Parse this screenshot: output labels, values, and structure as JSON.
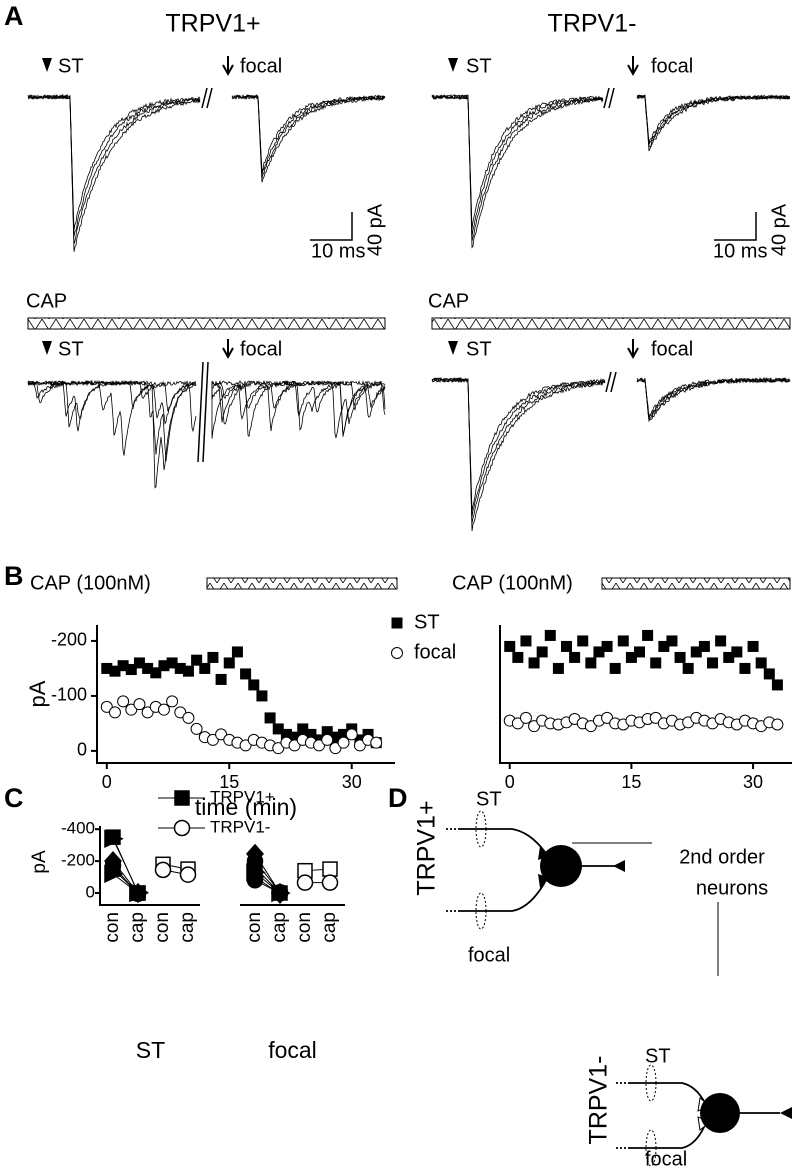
{
  "panel_labels": [
    "A",
    "B",
    "C",
    "D"
  ],
  "panel_a": {
    "columns": [
      "TRPV1+",
      "TRPV1-"
    ],
    "stimuli": [
      "ST",
      "focal"
    ],
    "scale_time": "10 ms",
    "scale_current": "40 pA",
    "drug": "CAP"
  },
  "chart_data": [
    {
      "type": "scatter",
      "annotation": "CAP (100nM)",
      "xlabel": "time (min)",
      "ylabel": "pA",
      "x": [
        0,
        1,
        2,
        3,
        4,
        5,
        6,
        7,
        8,
        9,
        10,
        11,
        12,
        13,
        14,
        15,
        16,
        17,
        18,
        19,
        20,
        21,
        22,
        23,
        24,
        25,
        26,
        27,
        28,
        29,
        30,
        31,
        32,
        33
      ],
      "xlim": [
        -1.2,
        35.3
      ],
      "xticks": [
        0,
        15,
        30
      ],
      "ylim": [
        22,
        -229
      ],
      "yticks": [
        0,
        -100,
        -200
      ],
      "legend": "upper right",
      "series": [
        {
          "name": "ST",
          "color": "#000000",
          "marker": "square",
          "values": [
            -150,
            -145,
            -155,
            -148,
            -160,
            -150,
            -142,
            -155,
            -160,
            -150,
            -145,
            -165,
            -150,
            -170,
            -130,
            -160,
            -180,
            -140,
            -120,
            -100,
            -60,
            -40,
            -30,
            -25,
            -40,
            -30,
            -20,
            -35,
            -25,
            -30,
            -40,
            -20,
            -30,
            -15
          ]
        },
        {
          "name": "focal",
          "color": "#ffffff",
          "marker": "circle",
          "values": [
            -80,
            -70,
            -90,
            -75,
            -85,
            -70,
            -80,
            -75,
            -90,
            -70,
            -60,
            -40,
            -25,
            -20,
            -30,
            -20,
            -15,
            -10,
            -20,
            -15,
            -10,
            -5,
            -15,
            -10,
            -20,
            -15,
            -10,
            -20,
            -5,
            -15,
            -30,
            -10,
            -20,
            -15
          ]
        }
      ]
    },
    {
      "type": "scatter",
      "annotation": "CAP (100nM)",
      "x": [
        0,
        1,
        2,
        3,
        4,
        5,
        6,
        7,
        8,
        9,
        10,
        11,
        12,
        13,
        14,
        15,
        16,
        17,
        18,
        19,
        20,
        21,
        22,
        23,
        24,
        25,
        26,
        27,
        28,
        29,
        30,
        31,
        32,
        33
      ],
      "xlim": [
        -1.2,
        34.8
      ],
      "xticks": [
        0,
        15,
        30
      ],
      "ylim": [
        22,
        -229
      ],
      "series": [
        {
          "color": "#000000",
          "marker": "square",
          "values": [
            -190,
            -170,
            -200,
            -160,
            -180,
            -210,
            -150,
            -190,
            -170,
            -200,
            -160,
            -180,
            -190,
            -150,
            -200,
            -170,
            -180,
            -210,
            -160,
            -190,
            -200,
            -170,
            -150,
            -180,
            -190,
            -160,
            -200,
            -170,
            -180,
            -150,
            -190,
            -160,
            -140,
            -120
          ]
        },
        {
          "color": "#ffffff",
          "marker": "circle",
          "values": [
            -55,
            -50,
            -60,
            -45,
            -55,
            -50,
            -48,
            -52,
            -58,
            -50,
            -45,
            -55,
            -60,
            -50,
            -48,
            -55,
            -52,
            -58,
            -60,
            -50,
            -55,
            -48,
            -52,
            -60,
            -55,
            -50,
            -58,
            -52,
            -48,
            -55,
            -50,
            -45,
            -52,
            -48
          ]
        }
      ]
    },
    {
      "type": "line",
      "ylabel": "pA",
      "categories": [
        "con",
        "cap",
        "con",
        "cap",
        "con",
        "cap",
        "con",
        "cap"
      ],
      "groups": [
        "ST",
        "focal"
      ],
      "ylim": [
        75,
        -420
      ],
      "yticks": [
        0,
        -200,
        -400
      ],
      "legend": "upper center",
      "series": [
        {
          "name": "TRPV1+",
          "color": "#000000",
          "values": [
            [
              -350,
              0,
              null,
              null,
              null,
              null,
              null,
              null
            ],
            [
              -340,
              -5,
              null,
              null,
              null,
              null,
              null,
              null
            ],
            [
              -200,
              0,
              null,
              null,
              null,
              null,
              null,
              null
            ],
            [
              -170,
              5,
              null,
              null,
              null,
              null,
              null,
              null
            ],
            [
              -150,
              0,
              null,
              null,
              null,
              null,
              null,
              null
            ],
            [
              -120,
              0,
              null,
              null,
              null,
              null,
              null,
              null
            ],
            [
              null,
              null,
              null,
              null,
              -245,
              0,
              null,
              null
            ],
            [
              null,
              null,
              null,
              null,
              -200,
              -5,
              null,
              null
            ],
            [
              null,
              null,
              null,
              null,
              -160,
              0,
              null,
              null
            ],
            [
              null,
              null,
              null,
              null,
              -130,
              0,
              null,
              null
            ],
            [
              null,
              null,
              null,
              null,
              -100,
              5,
              null,
              null
            ],
            [
              null,
              null,
              null,
              null,
              -80,
              0,
              null,
              null
            ]
          ]
        },
        {
          "name": "TRPV1-",
          "color": "#ffffff",
          "values": [
            [
              null,
              null,
              -180,
              -150,
              null,
              null,
              null,
              null
            ],
            [
              null,
              null,
              -145,
              -115,
              null,
              null,
              null,
              null
            ],
            [
              null,
              null,
              null,
              null,
              null,
              null,
              -140,
              -150
            ],
            [
              null,
              null,
              null,
              null,
              null,
              null,
              -65,
              -65
            ]
          ]
        }
      ]
    }
  ],
  "diagram": {
    "types": [
      "TRPV1+",
      "TRPV1-"
    ],
    "inputs": [
      "ST",
      "focal"
    ],
    "target": [
      "2nd order",
      "neurons"
    ]
  }
}
